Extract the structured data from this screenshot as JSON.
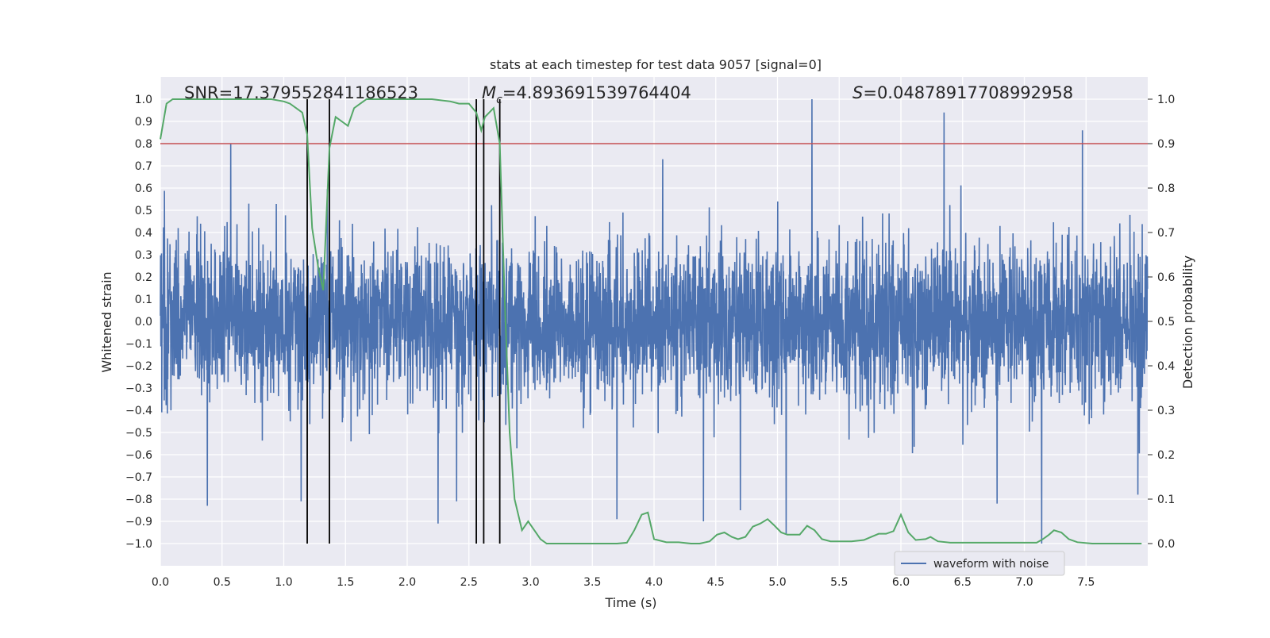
{
  "chart_data": {
    "type": "line",
    "title": "stats at each timestep for test data 9057 [signal=0]",
    "xlabel": "Time (s)",
    "ylabel": "Whitened strain",
    "y2label": "Detection probability",
    "xlim": [
      0,
      8
    ],
    "ylim": [
      -1.1,
      1.1
    ],
    "y2lim": [
      -0.05,
      1.05
    ],
    "xticks": [
      "0.0",
      "0.5",
      "1.0",
      "1.5",
      "2.0",
      "2.5",
      "3.0",
      "3.5",
      "4.0",
      "4.5",
      "5.0",
      "5.5",
      "6.0",
      "6.5",
      "7.0",
      "7.5"
    ],
    "yticks": [
      "1.0",
      "0.9",
      "0.8",
      "0.7",
      "0.6",
      "0.5",
      "0.4",
      "0.3",
      "0.2",
      "0.1",
      "0.0",
      "−0.1",
      "−0.2",
      "−0.3",
      "−0.4",
      "−0.5",
      "−0.6",
      "−0.7",
      "−0.8",
      "−0.9",
      "−1.0"
    ],
    "y2ticks": [
      "1.0",
      "0.9",
      "0.8",
      "0.7",
      "0.6",
      "0.5",
      "0.4",
      "0.3",
      "0.2",
      "0.1",
      "0.0"
    ],
    "stats": {
      "snr": "SNR=17.379552841186523",
      "mc_symbol": "M",
      "mc_sub": "c",
      "mc_value": "=4.893691539764404",
      "s_symbol": "S",
      "s_value": "=0.04878917708992958"
    },
    "legend": {
      "label": "waveform with noise",
      "position": "lower-right"
    },
    "grid": true,
    "threshold": {
      "axis": "right",
      "value": 0.9,
      "color": "#c44e52"
    },
    "event_lines_x": [
      1.19,
      1.37,
      2.56,
      2.62,
      2.75
    ],
    "series": [
      {
        "name": "waveform with noise",
        "axis": "left",
        "color": "#4c72b0",
        "kind": "noise",
        "sample_rate": 512,
        "envelope": [
          0.3,
          0.35
        ],
        "peaks": [
          {
            "x": 0.38,
            "y": -0.83
          },
          {
            "x": 0.57,
            "y": 0.8
          },
          {
            "x": 1.14,
            "y": -0.81
          },
          {
            "x": 2.25,
            "y": -0.91
          },
          {
            "x": 2.4,
            "y": -0.81
          },
          {
            "x": 3.7,
            "y": -0.89
          },
          {
            "x": 4.07,
            "y": 0.73
          },
          {
            "x": 4.4,
            "y": -0.9
          },
          {
            "x": 4.7,
            "y": -0.85
          },
          {
            "x": 5.07,
            "y": -0.96
          },
          {
            "x": 5.28,
            "y": 1.0
          },
          {
            "x": 6.35,
            "y": 0.94
          },
          {
            "x": 6.78,
            "y": -0.82
          },
          {
            "x": 7.14,
            "y": -1.0
          },
          {
            "x": 7.47,
            "y": 0.86
          },
          {
            "x": 7.92,
            "y": -0.78
          }
        ]
      },
      {
        "name": "",
        "axis": "right",
        "color": "#55a868",
        "x": [
          0,
          0.05,
          0.1,
          0.15,
          0.3,
          0.6,
          0.9,
          1.0,
          1.05,
          1.1,
          1.15,
          1.19,
          1.23,
          1.28,
          1.32,
          1.37,
          1.42,
          1.47,
          1.52,
          1.57,
          1.62,
          1.67,
          1.75,
          2.0,
          2.2,
          2.35,
          2.42,
          2.5,
          2.56,
          2.6,
          2.63,
          2.7,
          2.75,
          2.79,
          2.83,
          2.87,
          2.93,
          2.98,
          3.03,
          3.08,
          3.13,
          3.2,
          3.3,
          3.5,
          3.7,
          3.78,
          3.84,
          3.9,
          3.95,
          4.0,
          4.1,
          4.2,
          4.3,
          4.37,
          4.45,
          4.51,
          4.57,
          4.63,
          4.68,
          4.74,
          4.8,
          4.86,
          4.92,
          4.97,
          5.03,
          5.08,
          5.13,
          5.18,
          5.24,
          5.3,
          5.36,
          5.43,
          5.5,
          5.6,
          5.7,
          5.76,
          5.82,
          5.88,
          5.94,
          6.0,
          6.06,
          6.12,
          6.2,
          6.24,
          6.3,
          6.4,
          6.6,
          6.8,
          7.0,
          7.1,
          7.15,
          7.2,
          7.24,
          7.3,
          7.36,
          7.43,
          7.55,
          7.7,
          7.95
        ],
        "y": [
          0.91,
          0.99,
          1.0,
          1.0,
          1.0,
          1.0,
          1.0,
          0.995,
          0.99,
          0.98,
          0.97,
          0.92,
          0.71,
          0.62,
          0.57,
          0.89,
          0.96,
          0.95,
          0.94,
          0.98,
          0.99,
          1.0,
          1.0,
          1.0,
          1.0,
          0.995,
          0.99,
          0.99,
          0.97,
          0.93,
          0.96,
          0.98,
          0.9,
          0.55,
          0.25,
          0.1,
          0.03,
          0.05,
          0.03,
          0.01,
          0.0,
          0.0,
          0.0,
          0.0,
          0.0,
          0.002,
          0.03,
          0.065,
          0.07,
          0.01,
          0.003,
          0.003,
          0.0,
          0.0,
          0.005,
          0.02,
          0.025,
          0.015,
          0.01,
          0.015,
          0.038,
          0.045,
          0.055,
          0.042,
          0.025,
          0.02,
          0.02,
          0.02,
          0.04,
          0.03,
          0.01,
          0.005,
          0.005,
          0.005,
          0.008,
          0.015,
          0.022,
          0.022,
          0.028,
          0.065,
          0.025,
          0.008,
          0.01,
          0.015,
          0.005,
          0.002,
          0.002,
          0.002,
          0.002,
          0.002,
          0.01,
          0.02,
          0.03,
          0.025,
          0.01,
          0.003,
          0.0,
          0.0,
          0.0
        ]
      }
    ]
  }
}
